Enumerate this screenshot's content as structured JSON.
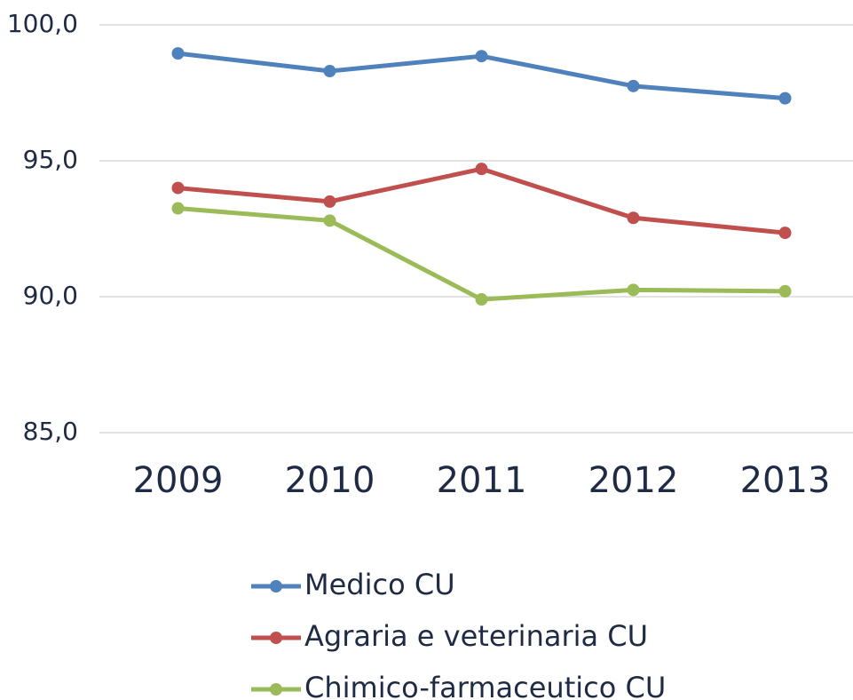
{
  "chart_data": {
    "type": "line",
    "categories": [
      "2009",
      "2010",
      "2011",
      "2012",
      "2013"
    ],
    "series": [
      {
        "name": "Medico CU",
        "color": "#4f81bd",
        "values": [
          98.95,
          98.3,
          98.85,
          97.75,
          97.3
        ]
      },
      {
        "name": "Agraria e veterinaria CU",
        "color": "#c0504d",
        "values": [
          94.0,
          93.5,
          94.7,
          92.9,
          92.35
        ]
      },
      {
        "name": "Chimico-farmaceutico CU",
        "color": "#9bbb59",
        "values": [
          93.25,
          92.8,
          89.9,
          90.25,
          90.2
        ]
      }
    ],
    "ylim": [
      85,
      100
    ],
    "yticks": [
      {
        "value": 85,
        "label": "85,0"
      },
      {
        "value": 90,
        "label": "90,0"
      },
      {
        "value": 95,
        "label": "95,0"
      },
      {
        "value": 100,
        "label": "100,0"
      }
    ],
    "grid": true,
    "legend": "bottom"
  }
}
